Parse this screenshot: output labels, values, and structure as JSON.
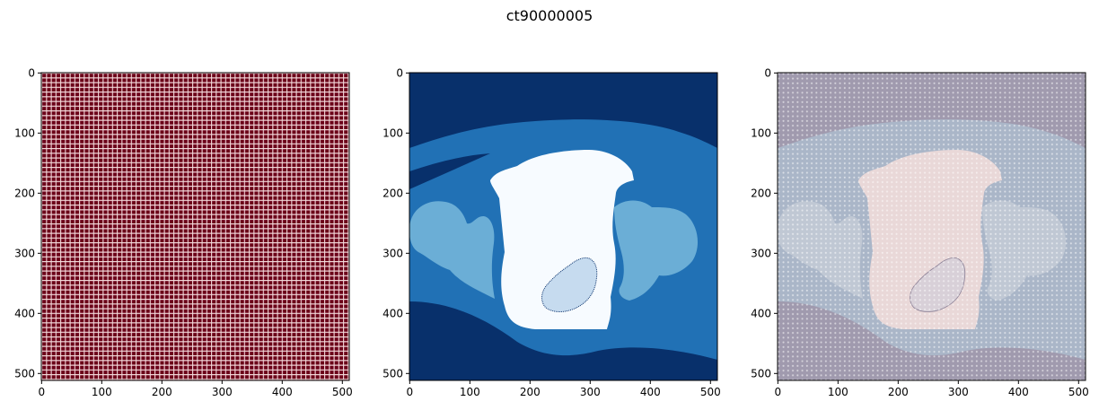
{
  "figure": {
    "title": "ct90000005"
  },
  "panels": [
    {
      "id": "raw-image",
      "x_ticks": [
        "0",
        "100",
        "200",
        "300",
        "400",
        "500"
      ],
      "y_ticks": [
        "0",
        "100",
        "200",
        "300",
        "400",
        "500"
      ],
      "x_range": [
        0,
        511
      ],
      "y_range": [
        0,
        511
      ],
      "colors": {
        "background": "#6b0018",
        "grid": "#f3dada"
      }
    },
    {
      "id": "segmentation",
      "x_ticks": [
        "0",
        "100",
        "200",
        "300",
        "400",
        "500"
      ],
      "y_ticks": [
        "0",
        "100",
        "200",
        "300",
        "400",
        "500"
      ],
      "x_range": [
        0,
        511
      ],
      "y_range": [
        0,
        511
      ],
      "colors": {
        "background": "#08306b",
        "soft_tissue": "#2171b5",
        "bone": "#6baed6",
        "organ": "#f7fbff",
        "lesion": "#c6dbef"
      }
    },
    {
      "id": "overlay",
      "x_ticks": [
        "0",
        "100",
        "200",
        "300",
        "400",
        "500"
      ],
      "y_ticks": [
        "0",
        "100",
        "200",
        "300",
        "400",
        "500"
      ],
      "x_range": [
        0,
        511
      ],
      "y_range": [
        0,
        511
      ],
      "colors": {
        "background": "#a09aae",
        "soft_tissue": "#aab6c8",
        "bone": "#c0c8d4",
        "organ": "#e9d8d8",
        "lesion": "#d8d0d8",
        "grid": "#ffffff"
      }
    }
  ]
}
